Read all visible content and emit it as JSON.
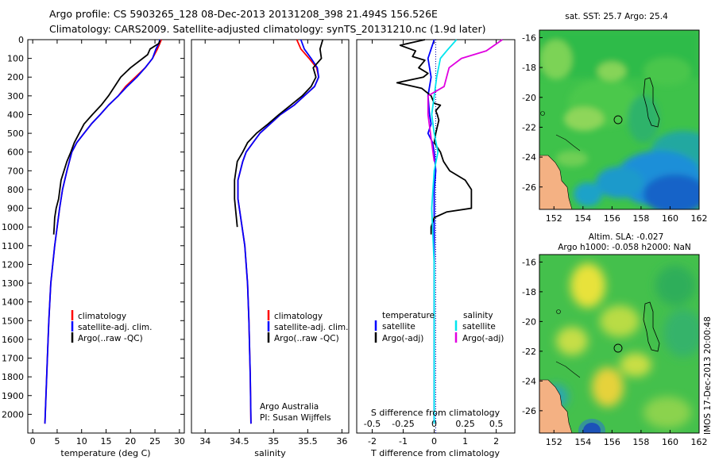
{
  "header": {
    "line1": "Argo profile: CS 5903265_128 08-Dec-2013 20131208_398 21.494S 156.526E",
    "line2": "Climatology: CARS2009. Satellite-adjusted climatology: synTS_20131210.nc (1.9d later)"
  },
  "colors": {
    "climatology": "#ff0000",
    "satellite": "#0000ff",
    "argo": "#000000",
    "salinity_sat": "#00e5ee",
    "salinity_argo": "#e000e0"
  },
  "chart_data": [
    {
      "type": "line",
      "name": "temperature-profile",
      "xlabel": "temperature (deg C)",
      "ylabel": "",
      "xlim": [
        -1,
        31
      ],
      "ylim": [
        2100,
        0
      ],
      "xticks": [
        "0",
        "5",
        "10",
        "15",
        "20",
        "25",
        "30"
      ],
      "yticks": [
        "0",
        "100",
        "200",
        "300",
        "400",
        "500",
        "600",
        "700",
        "800",
        "900",
        "1000",
        "1100",
        "1200",
        "1300",
        "1400",
        "1500",
        "1600",
        "1700",
        "1800",
        "1900",
        "2000"
      ],
      "legend": [
        "climatology",
        "satellite-adj. clim.",
        "Argo(..raw -QC)"
      ],
      "series": [
        {
          "name": "climatology",
          "x": [
            26.3,
            26,
            25.5,
            24.5,
            23,
            21,
            19,
            17.5,
            15.5,
            13.8,
            12,
            10.5,
            9,
            8,
            7,
            6.1,
            5.5,
            4.5,
            3.7,
            3.3,
            3,
            2.5
          ],
          "y": [
            0,
            20,
            50,
            100,
            150,
            200,
            250,
            300,
            350,
            400,
            450,
            500,
            550,
            600,
            700,
            800,
            900,
            1100,
            1300,
            1500,
            1700,
            2050
          ]
        },
        {
          "name": "satellite-adj. clim.",
          "x": [
            26,
            25.8,
            25.2,
            24.5,
            23,
            21.3,
            19.3,
            17.5,
            15.5,
            13.8,
            12,
            10.5,
            9,
            8,
            7,
            6.1,
            5.5,
            4.5,
            3.7,
            3.3,
            3,
            2.5
          ],
          "y": [
            0,
            20,
            50,
            100,
            150,
            200,
            250,
            300,
            350,
            400,
            450,
            500,
            550,
            600,
            700,
            800,
            900,
            1100,
            1300,
            1500,
            1700,
            2050
          ]
        },
        {
          "name": "Argo(..raw -QC)",
          "x": [
            26,
            25.8,
            24,
            23.5,
            22.5,
            20,
            18,
            15.5,
            14,
            12.2,
            10.5,
            9.5,
            8.5,
            7.8,
            7,
            5.8,
            5.3,
            4.8,
            4.5,
            4.4,
            4.3
          ],
          "y": [
            5,
            20,
            50,
            80,
            100,
            150,
            200,
            300,
            350,
            400,
            450,
            500,
            550,
            600,
            650,
            750,
            850,
            900,
            950,
            1000,
            1040
          ]
        }
      ]
    },
    {
      "type": "line",
      "name": "salinity-profile",
      "xlabel": "salinity",
      "xlim": [
        33.8,
        36.1
      ],
      "ylim": [
        2100,
        0
      ],
      "xticks": [
        "34",
        "34.5",
        "35",
        "35.5",
        "36"
      ],
      "legend": [
        "climatology",
        "satellite-adj. clim.",
        "Argo(..raw -QC)"
      ],
      "annotation": [
        "Argo Australia",
        "PI: Susan Wijffels"
      ],
      "series": [
        {
          "name": "climatology",
          "x": [
            35.34,
            35.4,
            35.52,
            35.63,
            35.66,
            35.6,
            35.45,
            35.3,
            35.1,
            34.95,
            34.8,
            34.7,
            34.6,
            34.55,
            34.48,
            34.48,
            34.52,
            34.58,
            34.62,
            34.64,
            34.66,
            34.67
          ],
          "y": [
            0,
            50,
            100,
            150,
            200,
            250,
            300,
            350,
            400,
            450,
            500,
            550,
            600,
            650,
            750,
            850,
            950,
            1100,
            1300,
            1500,
            1800,
            2050
          ]
        },
        {
          "name": "satellite-adj. clim.",
          "x": [
            35.4,
            35.45,
            35.55,
            35.64,
            35.66,
            35.6,
            35.45,
            35.3,
            35.1,
            34.95,
            34.8,
            34.7,
            34.6,
            34.55,
            34.48,
            34.48,
            34.52,
            34.58,
            34.62,
            34.64,
            34.66,
            34.67
          ],
          "y": [
            0,
            50,
            100,
            150,
            200,
            250,
            300,
            350,
            400,
            450,
            500,
            550,
            600,
            650,
            750,
            850,
            950,
            1100,
            1300,
            1500,
            1800,
            2050
          ]
        },
        {
          "name": "Argo(..raw -QC)",
          "x": [
            35.72,
            35.68,
            35.7,
            35.58,
            35.62,
            35.55,
            35.42,
            35.25,
            35.08,
            34.92,
            34.75,
            34.62,
            34.55,
            34.47,
            34.43,
            34.43,
            34.47
          ],
          "y": [
            0,
            50,
            100,
            150,
            200,
            250,
            300,
            350,
            400,
            450,
            500,
            550,
            600,
            650,
            750,
            850,
            1000
          ]
        }
      ]
    },
    {
      "type": "line",
      "name": "difference-profile",
      "xlabel": "T difference from climatology",
      "xlabel_top": "S difference from climatology",
      "xlim": [
        -2.5,
        2.6
      ],
      "ylim": [
        2100,
        0
      ],
      "xticks": [
        "-2",
        "-1",
        "0",
        "1",
        "2"
      ],
      "xticks_top": [
        "-0.5",
        "-0.25",
        "0",
        "0.25",
        "0.5"
      ],
      "legend_headers": [
        "temperature",
        "salinity"
      ],
      "legend": [
        "satellite",
        "Argo(-adj)",
        "satellite",
        "Argo(-adj)"
      ],
      "series": [
        {
          "name": "temperature satellite",
          "x": [
            0,
            -0.1,
            -0.2,
            -0.15,
            -0.1,
            -0.2,
            -0.15,
            -0.1,
            -0.2,
            -0.05,
            0,
            0.05,
            0,
            0
          ],
          "y": [
            0,
            50,
            100,
            150,
            200,
            300,
            400,
            450,
            500,
            550,
            600,
            700,
            800,
            2050
          ]
        },
        {
          "name": "temperature Argo(-adj)",
          "x": [
            -0.3,
            -1.1,
            -0.6,
            -0.7,
            -0.3,
            -0.5,
            -0.2,
            -0.35,
            -1.2,
            -0.4,
            -0.1,
            0,
            0.2,
            0.05,
            0.1,
            0.15,
            0.05,
            0,
            0.2,
            0.3,
            0.5,
            1,
            1.2,
            1.2,
            0.4,
            0,
            -0.1,
            -0.1
          ],
          "y": [
            0,
            30,
            60,
            90,
            110,
            150,
            180,
            200,
            230,
            260,
            300,
            340,
            350,
            380,
            400,
            430,
            500,
            550,
            600,
            650,
            700,
            750,
            800,
            900,
            920,
            950,
            1000,
            1040
          ]
        },
        {
          "name": "salinity satellite",
          "x": [
            0.18,
            0.1,
            0.05,
            0.02,
            0,
            -0.02,
            0,
            0.03,
            0,
            -0.02,
            0,
            0
          ],
          "y": [
            0,
            60,
            100,
            200,
            300,
            400,
            500,
            600,
            700,
            900,
            1200,
            2050
          ]
        },
        {
          "name": "salinity Argo(-adj)",
          "x": [
            0.55,
            0.42,
            0.22,
            0.12,
            0.1,
            0.08,
            -0.05,
            -0.05,
            -0.02,
            0
          ],
          "y": [
            0,
            60,
            100,
            150,
            200,
            250,
            300,
            400,
            550,
            650
          ]
        }
      ]
    },
    {
      "type": "heatmap",
      "name": "sst-map",
      "title": "sat. SST: 25.7 Argo: 25.4",
      "xticks": [
        "152",
        "154",
        "156",
        "158",
        "160",
        "162"
      ],
      "yticks": [
        "-16",
        "-18",
        "-20",
        "-22",
        "-24",
        "-26"
      ],
      "xlim": [
        151,
        162
      ],
      "ylim": [
        -27.5,
        -15.5
      ],
      "argo_location": {
        "lon": 156.526,
        "lat": -21.494
      }
    },
    {
      "type": "heatmap",
      "name": "sla-map",
      "title": [
        "Altim. SLA: -0.027",
        "Argo h1000: -0.058 h2000: NaN"
      ],
      "xticks": [
        "152",
        "154",
        "156",
        "158",
        "160",
        "162"
      ],
      "yticks": [
        "-16",
        "-18",
        "-20",
        "-22",
        "-24",
        "-26"
      ],
      "xlim": [
        151,
        162
      ],
      "ylim": [
        -27.5,
        -15.5
      ],
      "argo_location": {
        "lon": 156.526,
        "lat": -21.494
      }
    }
  ],
  "footer": {
    "watermark": "IMOS 17-Dec-2013 20:00:48"
  }
}
